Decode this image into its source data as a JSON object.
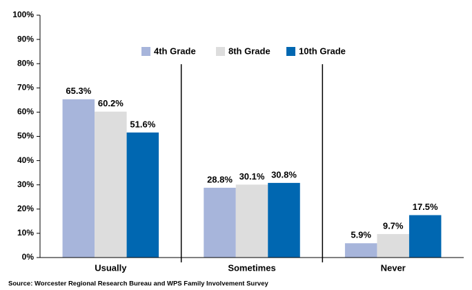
{
  "chart_data": {
    "type": "bar",
    "categories": [
      "Usually",
      "Sometimes",
      "Never"
    ],
    "series": [
      {
        "name": "4th Grade",
        "color": "#a7b5db",
        "values": [
          65.3,
          28.8,
          5.9
        ],
        "value_labels": [
          "65.3%",
          "28.8%",
          "5.9%"
        ]
      },
      {
        "name": "8th Grade",
        "color": "#dddddd",
        "values": [
          60.2,
          30.1,
          9.7
        ],
        "value_labels": [
          "60.2%",
          "30.1%",
          "9.7%"
        ]
      },
      {
        "name": "10th Grade",
        "color": "#0067b1",
        "values": [
          51.6,
          30.8,
          17.5
        ],
        "value_labels": [
          "51.6%",
          "30.8%",
          "17.5%"
        ]
      }
    ],
    "ylim": [
      0,
      100
    ],
    "yticks": [
      {
        "value": 0,
        "label": "0%"
      },
      {
        "value": 10,
        "label": "10%"
      },
      {
        "value": 20,
        "label": "20%"
      },
      {
        "value": 30,
        "label": "30%"
      },
      {
        "value": 40,
        "label": "40%"
      },
      {
        "value": 50,
        "label": "50%"
      },
      {
        "value": 60,
        "label": "60%"
      },
      {
        "value": 70,
        "label": "70%"
      },
      {
        "value": 80,
        "label": "80%"
      },
      {
        "value": 90,
        "label": "90%"
      },
      {
        "value": 100,
        "label": "100%"
      }
    ],
    "grid": false,
    "legend": "top",
    "source": "Source:  Worcester Regional Research Bureau and WPS Family Involvement Survey"
  }
}
